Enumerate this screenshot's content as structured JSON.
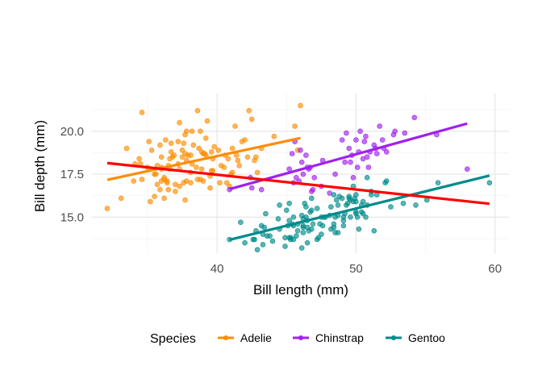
{
  "chart_data": {
    "type": "scatter",
    "title": "",
    "xlabel": "Bill length (mm)",
    "ylabel": "Bill depth (mm)",
    "xlim": [
      31.0,
      61.0
    ],
    "ylim": [
      12.9,
      22.2
    ],
    "x_ticks": [
      40,
      50,
      60
    ],
    "x_tick_labels": [
      "40",
      "50",
      "60"
    ],
    "y_ticks": [
      15.0,
      17.5,
      20.0
    ],
    "y_tick_labels": [
      "15.0",
      "17.5",
      "20.0"
    ],
    "grid": true,
    "legend": {
      "title": "Species",
      "position": "bottom",
      "entries": [
        "Adelie",
        "Chinstrap",
        "Gentoo"
      ]
    },
    "series": [
      {
        "name": "Adelie",
        "color": "#FF8C00",
        "points": [
          [
            32.1,
            15.5
          ],
          [
            33.1,
            16.1
          ],
          [
            33.5,
            19.0
          ],
          [
            34.0,
            17.1
          ],
          [
            34.1,
            18.1
          ],
          [
            34.4,
            18.4
          ],
          [
            34.5,
            18.1
          ],
          [
            34.6,
            21.1
          ],
          [
            34.6,
            17.2
          ],
          [
            35.0,
            17.9
          ],
          [
            35.1,
            19.4
          ],
          [
            35.2,
            15.9
          ],
          [
            35.3,
            18.9
          ],
          [
            35.5,
            17.5
          ],
          [
            35.5,
            16.2
          ],
          [
            35.6,
            17.5
          ],
          [
            35.7,
            16.9
          ],
          [
            35.7,
            18.0
          ],
          [
            35.9,
            19.2
          ],
          [
            35.9,
            16.6
          ],
          [
            36.0,
            17.9
          ],
          [
            36.0,
            18.5
          ],
          [
            36.0,
            17.8
          ],
          [
            36.0,
            17.1
          ],
          [
            36.2,
            17.2
          ],
          [
            36.2,
            16.1
          ],
          [
            36.2,
            17.3
          ],
          [
            36.3,
            19.5
          ],
          [
            36.4,
            17.0
          ],
          [
            36.4,
            17.1
          ],
          [
            36.5,
            18.0
          ],
          [
            36.5,
            16.6
          ],
          [
            36.6,
            17.8
          ],
          [
            36.6,
            18.4
          ],
          [
            36.7,
            19.3
          ],
          [
            36.7,
            18.8
          ],
          [
            36.8,
            18.5
          ],
          [
            36.9,
            18.6
          ],
          [
            37.0,
            16.9
          ],
          [
            37.0,
            16.5
          ],
          [
            37.2,
            18.1
          ],
          [
            37.2,
            19.4
          ],
          [
            37.3,
            20.5
          ],
          [
            37.3,
            17.8
          ],
          [
            37.3,
            16.8
          ],
          [
            37.5,
            18.9
          ],
          [
            37.5,
            18.5
          ],
          [
            37.6,
            19.3
          ],
          [
            37.6,
            17.0
          ],
          [
            37.7,
            18.7
          ],
          [
            37.7,
            19.8
          ],
          [
            37.7,
            16.0
          ],
          [
            37.8,
            18.3
          ],
          [
            37.8,
            17.1
          ],
          [
            37.8,
            20.0
          ],
          [
            37.9,
            18.6
          ],
          [
            38.1,
            18.6
          ],
          [
            38.1,
            17.6
          ],
          [
            38.1,
            17.0
          ],
          [
            38.2,
            18.1
          ],
          [
            38.2,
            20.0
          ],
          [
            38.3,
            19.2
          ],
          [
            38.5,
            17.9
          ],
          [
            38.6,
            21.2
          ],
          [
            38.6,
            17.2
          ],
          [
            38.7,
            19.0
          ],
          [
            38.8,
            17.2
          ],
          [
            38.8,
            20.0
          ],
          [
            38.9,
            17.8
          ],
          [
            38.9,
            18.8
          ],
          [
            39.0,
            17.1
          ],
          [
            39.0,
            18.7
          ],
          [
            39.1,
            18.7
          ],
          [
            39.2,
            19.6
          ],
          [
            39.2,
            18.6
          ],
          [
            39.3,
            20.6
          ],
          [
            39.5,
            17.4
          ],
          [
            39.5,
            16.7
          ],
          [
            39.6,
            17.7
          ],
          [
            39.6,
            18.8
          ],
          [
            39.7,
            18.4
          ],
          [
            39.7,
            17.7
          ],
          [
            39.8,
            19.1
          ],
          [
            40.1,
            18.9
          ],
          [
            40.2,
            17.0
          ],
          [
            40.3,
            18.0
          ],
          [
            40.5,
            17.9
          ],
          [
            40.6,
            18.6
          ],
          [
            40.7,
            17.0
          ],
          [
            40.8,
            18.4
          ],
          [
            40.9,
            16.8
          ],
          [
            41.0,
            17.5
          ],
          [
            41.1,
            17.6
          ],
          [
            41.1,
            19.0
          ],
          [
            41.3,
            20.3
          ],
          [
            41.4,
            18.6
          ],
          [
            41.5,
            18.3
          ],
          [
            41.6,
            18.0
          ],
          [
            41.8,
            19.4
          ],
          [
            42.0,
            19.5
          ],
          [
            42.2,
            18.5
          ],
          [
            42.3,
            21.2
          ],
          [
            42.5,
            20.7
          ],
          [
            42.7,
            18.3
          ],
          [
            42.8,
            18.5
          ],
          [
            42.9,
            17.6
          ],
          [
            43.2,
            19.0
          ],
          [
            44.1,
            19.7
          ],
          [
            45.6,
            20.3
          ],
          [
            45.8,
            18.9
          ],
          [
            46.0,
            21.5
          ]
        ]
      },
      {
        "name": "Chinstrap",
        "color": "#A020F0",
        "points": [
          [
            40.9,
            16.6
          ],
          [
            42.4,
            17.3
          ],
          [
            42.5,
            16.7
          ],
          [
            43.2,
            16.6
          ],
          [
            45.2,
            17.8
          ],
          [
            45.4,
            18.7
          ],
          [
            45.5,
            17.0
          ],
          [
            45.6,
            19.4
          ],
          [
            45.7,
            17.3
          ],
          [
            45.9,
            17.1
          ],
          [
            46.0,
            18.9
          ],
          [
            46.1,
            18.2
          ],
          [
            46.2,
            17.5
          ],
          [
            46.4,
            18.6
          ],
          [
            46.5,
            17.9
          ],
          [
            46.6,
            17.8
          ],
          [
            46.7,
            17.9
          ],
          [
            46.8,
            16.5
          ],
          [
            46.9,
            16.6
          ],
          [
            47.0,
            17.3
          ],
          [
            47.5,
            16.8
          ],
          [
            47.6,
            18.3
          ],
          [
            48.1,
            16.4
          ],
          [
            48.5,
            17.5
          ],
          [
            49.0,
            19.5
          ],
          [
            49.2,
            18.2
          ],
          [
            49.3,
            19.9
          ],
          [
            49.5,
            19.0
          ],
          [
            49.6,
            18.2
          ],
          [
            49.7,
            18.6
          ],
          [
            49.8,
            17.3
          ],
          [
            50.0,
            19.5
          ],
          [
            50.1,
            17.9
          ],
          [
            50.2,
            18.8
          ],
          [
            50.3,
            20.0
          ],
          [
            50.5,
            18.4
          ],
          [
            50.6,
            19.4
          ],
          [
            50.7,
            19.7
          ],
          [
            50.8,
            18.5
          ],
          [
            50.9,
            17.9
          ],
          [
            51.0,
            18.8
          ],
          [
            51.3,
            19.2
          ],
          [
            51.4,
            19.0
          ],
          [
            51.5,
            18.7
          ],
          [
            51.7,
            20.3
          ],
          [
            51.9,
            19.5
          ],
          [
            52.0,
            19.0
          ],
          [
            52.2,
            18.8
          ],
          [
            52.7,
            19.8
          ],
          [
            52.8,
            20.0
          ],
          [
            53.5,
            19.9
          ],
          [
            54.2,
            20.8
          ],
          [
            55.8,
            19.8
          ],
          [
            58.0,
            17.8
          ]
        ]
      },
      {
        "name": "Gentoo",
        "color": "#008B8B",
        "points": [
          [
            40.9,
            13.7
          ],
          [
            41.7,
            14.7
          ],
          [
            42.0,
            13.5
          ],
          [
            42.6,
            13.7
          ],
          [
            42.7,
            13.7
          ],
          [
            42.8,
            14.2
          ],
          [
            42.9,
            13.1
          ],
          [
            43.2,
            14.5
          ],
          [
            43.3,
            13.4
          ],
          [
            43.3,
            14.0
          ],
          [
            43.4,
            14.4
          ],
          [
            43.5,
            15.2
          ],
          [
            43.6,
            13.9
          ],
          [
            43.8,
            13.9
          ],
          [
            44.0,
            13.6
          ],
          [
            44.4,
            14.9
          ],
          [
            44.5,
            14.3
          ],
          [
            44.5,
            15.7
          ],
          [
            44.9,
            13.3
          ],
          [
            44.9,
            13.8
          ],
          [
            45.0,
            15.4
          ],
          [
            45.1,
            14.5
          ],
          [
            45.2,
            13.8
          ],
          [
            45.2,
            14.8
          ],
          [
            45.2,
            15.8
          ],
          [
            45.3,
            13.7
          ],
          [
            45.3,
            13.8
          ],
          [
            45.4,
            14.6
          ],
          [
            45.5,
            13.7
          ],
          [
            45.5,
            14.5
          ],
          [
            45.5,
            15.0
          ],
          [
            45.7,
            13.9
          ],
          [
            45.8,
            14.2
          ],
          [
            45.8,
            14.6
          ],
          [
            46.1,
            13.2
          ],
          [
            46.1,
            15.1
          ],
          [
            46.2,
            14.1
          ],
          [
            46.2,
            14.4
          ],
          [
            46.2,
            14.5
          ],
          [
            46.2,
            14.9
          ],
          [
            46.3,
            15.8
          ],
          [
            46.4,
            15.0
          ],
          [
            46.4,
            15.6
          ],
          [
            46.5,
            13.5
          ],
          [
            46.5,
            14.4
          ],
          [
            46.5,
            14.8
          ],
          [
            46.6,
            14.2
          ],
          [
            46.7,
            15.3
          ],
          [
            46.8,
            14.3
          ],
          [
            46.8,
            15.4
          ],
          [
            46.8,
            16.1
          ],
          [
            46.9,
            14.6
          ],
          [
            47.2,
            13.7
          ],
          [
            47.2,
            15.5
          ],
          [
            47.3,
            13.8
          ],
          [
            47.4,
            14.6
          ],
          [
            47.5,
            14.0
          ],
          [
            47.5,
            15.0
          ],
          [
            47.6,
            14.5
          ],
          [
            47.7,
            15.0
          ],
          [
            47.8,
            15.0
          ],
          [
            48.1,
            15.1
          ],
          [
            48.2,
            14.3
          ],
          [
            48.2,
            15.6
          ],
          [
            48.4,
            14.4
          ],
          [
            48.4,
            14.6
          ],
          [
            48.4,
            16.3
          ],
          [
            48.5,
            14.1
          ],
          [
            48.5,
            15.0
          ],
          [
            48.6,
            16.0
          ],
          [
            48.7,
            14.1
          ],
          [
            48.7,
            15.1
          ],
          [
            48.7,
            15.7
          ],
          [
            48.8,
            16.2
          ],
          [
            49.0,
            16.1
          ],
          [
            49.1,
            14.5
          ],
          [
            49.1,
            14.8
          ],
          [
            49.1,
            15.0
          ],
          [
            49.2,
            15.2
          ],
          [
            49.3,
            15.7
          ],
          [
            49.4,
            15.8
          ],
          [
            49.5,
            16.1
          ],
          [
            49.5,
            16.2
          ],
          [
            49.6,
            15.0
          ],
          [
            49.6,
            16.0
          ],
          [
            49.8,
            15.9
          ],
          [
            49.8,
            16.8
          ],
          [
            49.9,
            16.1
          ],
          [
            50.0,
            15.2
          ],
          [
            50.0,
            15.3
          ],
          [
            50.0,
            15.9
          ],
          [
            50.0,
            16.3
          ],
          [
            50.1,
            15.0
          ],
          [
            50.2,
            14.3
          ],
          [
            50.4,
            15.3
          ],
          [
            50.4,
            15.7
          ],
          [
            50.5,
            15.2
          ],
          [
            50.5,
            15.9
          ],
          [
            50.7,
            15.0
          ],
          [
            50.8,
            15.7
          ],
          [
            50.8,
            17.3
          ],
          [
            51.1,
            16.3
          ],
          [
            51.1,
            16.5
          ],
          [
            51.3,
            14.2
          ],
          [
            51.5,
            16.3
          ],
          [
            52.1,
            17.0
          ],
          [
            52.2,
            17.1
          ],
          [
            52.5,
            15.6
          ],
          [
            53.4,
            15.8
          ],
          [
            54.3,
            15.7
          ],
          [
            55.1,
            16.0
          ],
          [
            55.9,
            17.0
          ],
          [
            59.6,
            17.0
          ]
        ]
      }
    ],
    "trend_lines": [
      {
        "name": "Adelie",
        "color": "#FF8C00",
        "x": [
          32.1,
          46.0
        ],
        "y": [
          17.17,
          19.61
        ]
      },
      {
        "name": "Chinstrap",
        "color": "#A020F0",
        "x": [
          40.9,
          58.0
        ],
        "y": [
          16.63,
          20.45
        ]
      },
      {
        "name": "Gentoo",
        "color": "#008B8B",
        "x": [
          40.9,
          59.6
        ],
        "y": [
          13.68,
          17.42
        ]
      },
      {
        "name": "",
        "color": "#FF0000",
        "x": [
          32.1,
          59.6
        ],
        "y": [
          18.15,
          15.78
        ]
      }
    ]
  }
}
